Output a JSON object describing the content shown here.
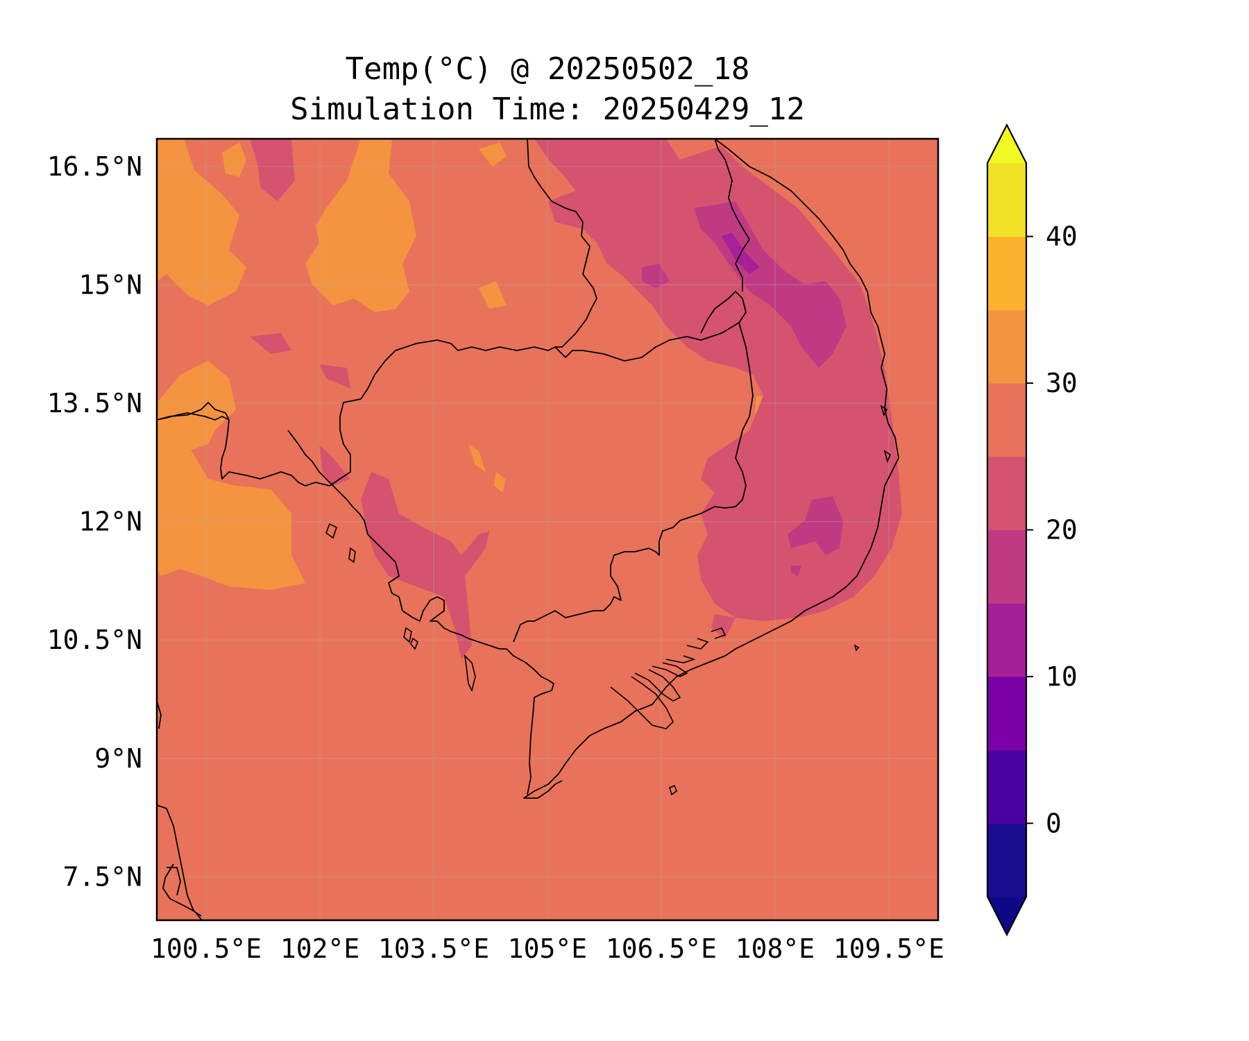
{
  "title": "Temp(°C) @ 20250502_18",
  "subtitle": "Simulation Time: 20250429_12",
  "map": {
    "variable": "Temp",
    "unit": "°C",
    "lon_range": [
      99.85,
      110.15
    ],
    "lat_range": [
      6.95,
      16.85
    ],
    "lon_ticks": [
      "100.5°E",
      "102°E",
      "103.5°E",
      "105°E",
      "106.5°E",
      "108°E",
      "109.5°E"
    ],
    "lat_ticks": [
      "16.5°N",
      "15°N",
      "13.5°N",
      "12°N",
      "10.5°N",
      "9°N",
      "7.5°N"
    ],
    "background_level": "25–30",
    "grid": true
  },
  "colorbar": {
    "extend": "both",
    "tick_labels": [
      "0",
      "10",
      "20",
      "30",
      "40"
    ],
    "levels": [
      -5,
      0,
      5,
      10,
      15,
      20,
      25,
      30,
      35,
      40,
      45
    ],
    "colors": [
      "#1c0c8f",
      "#4c02a1",
      "#7c02a8",
      "#a62098",
      "#c03a83",
      "#d5536f",
      "#e8735a",
      "#f59440",
      "#fbb32f",
      "#f3e125"
    ],
    "under_color": "#0d0887",
    "over_color": "#f0f921"
  }
}
